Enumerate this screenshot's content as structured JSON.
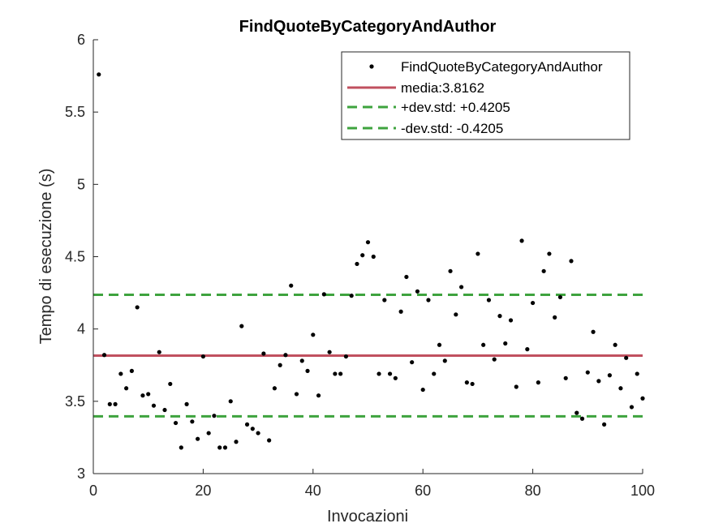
{
  "chart_data": {
    "type": "scatter",
    "title": "FindQuoteByCategoryAndAuthor",
    "xlabel": "Invocazioni",
    "ylabel": "Tempo di esecuzione (s)",
    "xlim": [
      0,
      100
    ],
    "ylim": [
      3,
      6
    ],
    "xticks": [
      0,
      20,
      40,
      60,
      80,
      100
    ],
    "yticks": [
      3,
      3.5,
      4,
      4.5,
      5,
      5.5,
      6
    ],
    "xtick_labels": [
      "0",
      "20",
      "40",
      "60",
      "80",
      "100"
    ],
    "ytick_labels": [
      "3",
      "3.5",
      "4",
      "4.5",
      "5",
      "5.5",
      "6"
    ],
    "grid": false,
    "legend_position": "top-right",
    "legend": [
      {
        "label": "FindQuoteByCategoryAndAuthor",
        "style": "dot",
        "color": "#000000"
      },
      {
        "label": "media:3.8162",
        "style": "solid",
        "color": "#c0505f"
      },
      {
        "label": "+dev.std: +0.4205",
        "style": "dashed",
        "color": "#3ea33e"
      },
      {
        "label": "-dev.std: -0.4205",
        "style": "dashed",
        "color": "#3ea33e"
      }
    ],
    "mean": 3.8162,
    "upper": 4.2367,
    "lower": 3.3957,
    "series": [
      {
        "name": "FindQuoteByCategoryAndAuthor",
        "x": [
          1,
          2,
          3,
          4,
          5,
          6,
          7,
          8,
          9,
          10,
          11,
          12,
          13,
          14,
          15,
          16,
          17,
          18,
          19,
          20,
          21,
          22,
          23,
          24,
          25,
          26,
          27,
          28,
          29,
          30,
          31,
          32,
          33,
          34,
          35,
          36,
          37,
          38,
          39,
          40,
          41,
          42,
          43,
          44,
          45,
          46,
          47,
          48,
          49,
          50,
          51,
          52,
          53,
          54,
          55,
          56,
          57,
          58,
          59,
          60,
          61,
          62,
          63,
          64,
          65,
          66,
          67,
          68,
          69,
          70,
          71,
          72,
          73,
          74,
          75,
          76,
          77,
          78,
          79,
          80,
          81,
          82,
          83,
          84,
          85,
          86,
          87,
          88,
          89,
          90,
          91,
          92,
          93,
          94,
          95,
          96,
          97,
          98,
          99,
          100
        ],
        "values": [
          5.76,
          3.82,
          3.48,
          3.48,
          3.69,
          3.59,
          3.71,
          4.15,
          3.54,
          3.55,
          3.47,
          3.84,
          3.44,
          3.62,
          3.35,
          3.18,
          3.48,
          3.36,
          3.24,
          3.81,
          3.28,
          3.4,
          3.18,
          3.18,
          3.5,
          3.22,
          4.02,
          3.34,
          3.31,
          3.28,
          3.83,
          3.23,
          3.59,
          3.75,
          3.82,
          4.3,
          3.55,
          3.78,
          3.71,
          3.96,
          3.54,
          4.24,
          3.84,
          3.69,
          3.69,
          3.81,
          4.23,
          4.45,
          4.51,
          4.6,
          4.5,
          3.69,
          4.2,
          3.69,
          3.66,
          4.12,
          4.36,
          3.77,
          4.26,
          3.58,
          4.2,
          3.69,
          3.89,
          3.78,
          4.4,
          4.1,
          4.29,
          3.63,
          3.62,
          4.52,
          3.89,
          4.2,
          3.79,
          4.09,
          3.9,
          4.06,
          3.6,
          4.61,
          3.86,
          4.18,
          3.63,
          4.4,
          4.52,
          4.08,
          4.22,
          3.66,
          4.47,
          3.42,
          3.38,
          3.7,
          3.98,
          3.64,
          3.34,
          3.68,
          3.89,
          3.59,
          3.8,
          3.46,
          3.69,
          3.52
        ]
      }
    ]
  }
}
